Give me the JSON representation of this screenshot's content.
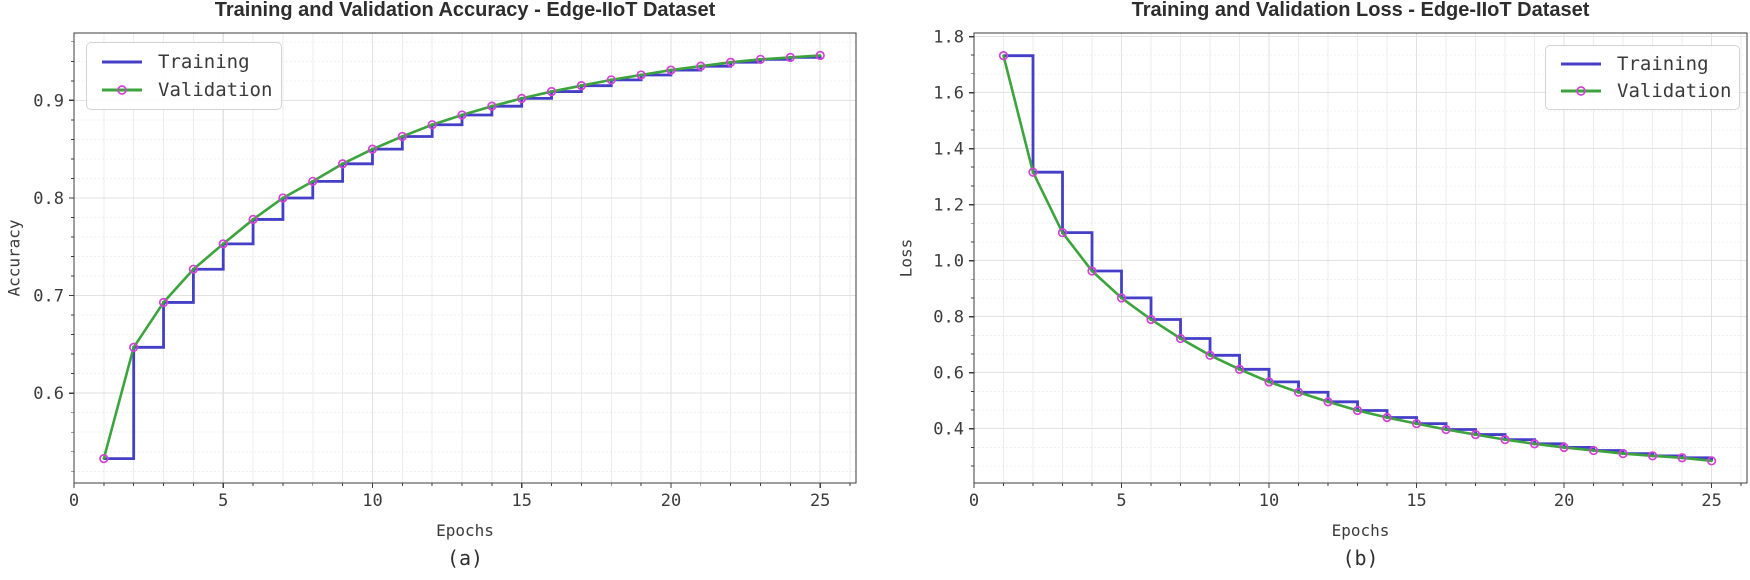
{
  "colors": {
    "training_line": "#443fc6",
    "validation_line": "#3ca43c",
    "marker_edge": "#d442d4",
    "grid_major": "#e2e2e2",
    "grid_minor": "#ececec",
    "axis_spine": "#3d3d3d",
    "tick_text": "#3b3b3b",
    "title_text": "#2d2d2d",
    "background": "#ffffff"
  },
  "chart_data": [
    {
      "id": "accuracy",
      "type": "line",
      "title": "Training and Validation Accuracy - Edge-IIoT Dataset",
      "xlabel": "Epochs",
      "ylabel": "Accuracy",
      "caption": "(a)",
      "x": [
        1,
        2,
        3,
        4,
        5,
        6,
        7,
        8,
        9,
        10,
        11,
        12,
        13,
        14,
        15,
        16,
        17,
        18,
        19,
        20,
        21,
        22,
        23,
        24,
        25
      ],
      "series": [
        {
          "name": "Training",
          "style": "steps-post",
          "color_key": "training_line",
          "values": [
            0.533,
            0.647,
            0.693,
            0.727,
            0.753,
            0.778,
            0.8,
            0.817,
            0.835,
            0.85,
            0.863,
            0.875,
            0.885,
            0.894,
            0.902,
            0.909,
            0.915,
            0.921,
            0.926,
            0.931,
            0.935,
            0.939,
            0.942,
            0.944,
            0.946
          ]
        },
        {
          "name": "Validation",
          "style": "line-markers",
          "color_key": "validation_line",
          "values": [
            0.533,
            0.647,
            0.693,
            0.727,
            0.753,
            0.778,
            0.8,
            0.817,
            0.835,
            0.85,
            0.863,
            0.875,
            0.885,
            0.894,
            0.902,
            0.909,
            0.915,
            0.921,
            0.926,
            0.931,
            0.935,
            0.939,
            0.942,
            0.944,
            0.946
          ]
        }
      ],
      "xlim": [
        0,
        26.2
      ],
      "ylim": [
        0.508,
        0.969
      ],
      "x_ticks": [
        0,
        5,
        10,
        15,
        20,
        25
      ],
      "x_tick_labels": [
        "0",
        "5",
        "10",
        "15",
        "20",
        "25"
      ],
      "y_ticks": [
        0.6,
        0.7,
        0.8,
        0.9
      ],
      "y_tick_labels": [
        "0.6",
        "0.7",
        "0.8",
        "0.9"
      ],
      "x_minor_step": 1,
      "y_minor_step": 0.02,
      "grid": true,
      "legend_position": "upper-left"
    },
    {
      "id": "loss",
      "type": "line",
      "title": "Training and Validation Loss - Edge-IIoT Dataset",
      "xlabel": "Epochs",
      "ylabel": "Loss",
      "caption": "(b)",
      "x": [
        1,
        2,
        3,
        4,
        5,
        6,
        7,
        8,
        9,
        10,
        11,
        12,
        13,
        14,
        15,
        16,
        17,
        18,
        19,
        20,
        21,
        22,
        23,
        24,
        25
      ],
      "series": [
        {
          "name": "Training",
          "style": "steps-post",
          "color_key": "training_line",
          "values": [
            1.732,
            1.316,
            1.1,
            0.963,
            0.867,
            0.79,
            0.722,
            0.662,
            0.612,
            0.567,
            0.53,
            0.496,
            0.465,
            0.44,
            0.418,
            0.397,
            0.379,
            0.361,
            0.346,
            0.333,
            0.322,
            0.311,
            0.303,
            0.296,
            0.285
          ]
        },
        {
          "name": "Validation",
          "style": "line-markers",
          "color_key": "validation_line",
          "values": [
            1.732,
            1.316,
            1.1,
            0.963,
            0.867,
            0.79,
            0.722,
            0.662,
            0.612,
            0.567,
            0.53,
            0.496,
            0.465,
            0.44,
            0.418,
            0.397,
            0.379,
            0.361,
            0.346,
            0.333,
            0.322,
            0.311,
            0.303,
            0.296,
            0.285
          ]
        }
      ],
      "xlim": [
        0,
        26.2
      ],
      "ylim": [
        0.206,
        1.813
      ],
      "x_ticks": [
        0,
        5,
        10,
        15,
        20,
        25
      ],
      "x_tick_labels": [
        "0",
        "5",
        "10",
        "15",
        "20",
        "25"
      ],
      "y_ticks": [
        0.4,
        0.6,
        0.8,
        1.0,
        1.2,
        1.4,
        1.6,
        1.8
      ],
      "y_tick_labels": [
        "0.4",
        "0.6",
        "0.8",
        "1.0",
        "1.2",
        "1.4",
        "1.6",
        "1.8"
      ],
      "x_minor_step": 1,
      "y_minor_step": 0.0667,
      "grid": true,
      "legend_position": "upper-right"
    }
  ]
}
